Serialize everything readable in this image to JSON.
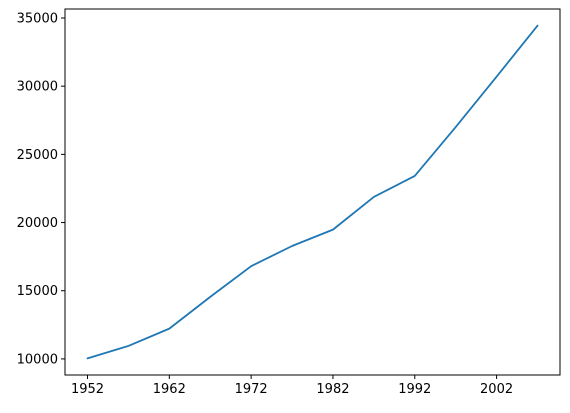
{
  "chart_data": {
    "type": "line",
    "title": "",
    "xlabel": "",
    "ylabel": "",
    "x": [
      1952,
      1957,
      1962,
      1967,
      1972,
      1977,
      1982,
      1987,
      1992,
      1997,
      2002,
      2007
    ],
    "series": [
      {
        "values": [
          10040,
          10950,
          12220,
          14550,
          16800,
          18280,
          19480,
          21880,
          23420,
          27000,
          30700,
          34440
        ],
        "color": "#1f77b4"
      }
    ],
    "xlim": [
      1949.25,
      2009.75
    ],
    "ylim": [
      8820,
      35660
    ],
    "xticks": [
      1952,
      1962,
      1972,
      1982,
      1992,
      2002
    ],
    "yticks": [
      10000,
      15000,
      20000,
      25000,
      30000,
      35000
    ],
    "grid": false,
    "legend": "none"
  }
}
